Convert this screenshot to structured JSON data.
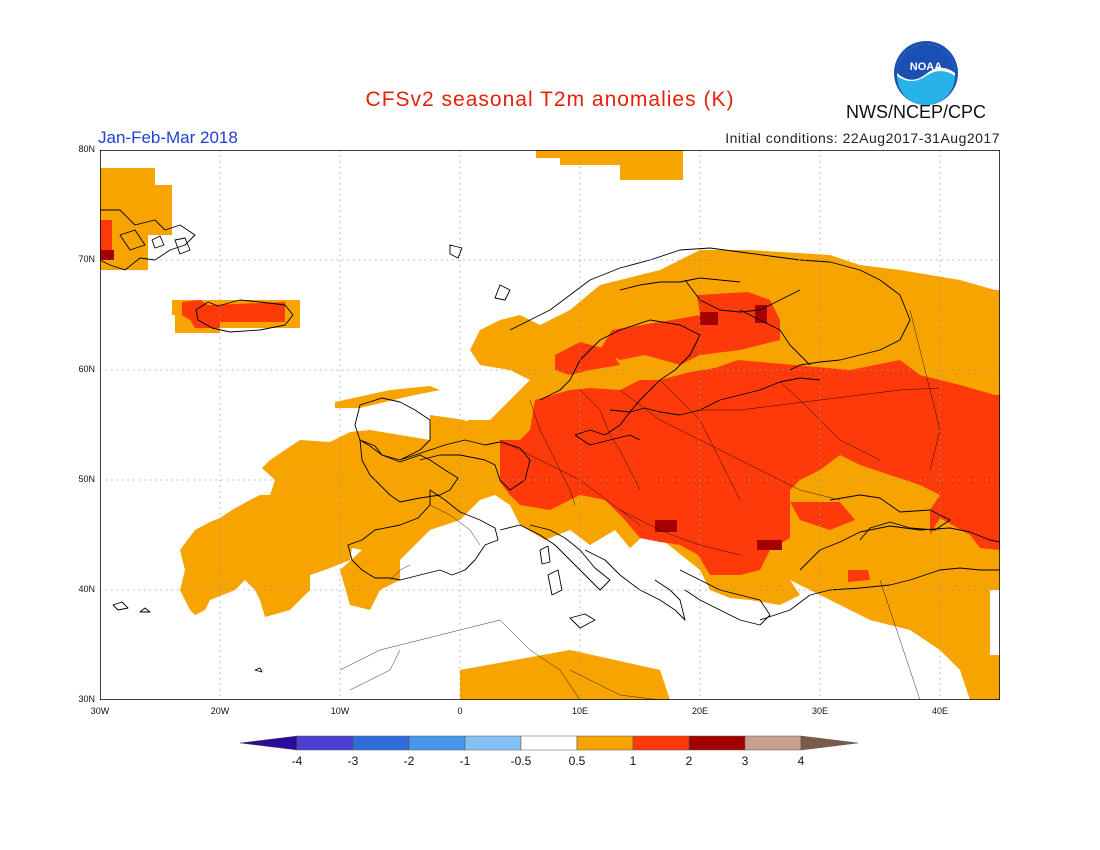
{
  "title": "CFSv2 seasonal T2m anomalies (K)",
  "agency": "NWS/NCEP/CPC",
  "logo_text": "NOAA",
  "period": "Jan-Feb-Mar 2018",
  "initial_conditions": "Initial conditions: 22Aug2017-31Aug2017",
  "lat_labels": [
    "80N",
    "70N",
    "60N",
    "50N",
    "40N",
    "30N"
  ],
  "lon_labels": [
    "30W",
    "20W",
    "10W",
    "0",
    "10E",
    "20E",
    "30E",
    "40E"
  ],
  "legend": {
    "labels": [
      "-4",
      "-3",
      "-2",
      "-1",
      "-0.5",
      "0.5",
      "1",
      "2",
      "3",
      "4"
    ],
    "colors": [
      "#2a0b9a",
      "#4b3fd0",
      "#2f6ddc",
      "#4a97ea",
      "#84c2f6",
      "#ffffff",
      "#f7a400",
      "#ff3a0a",
      "#a40000",
      "#c7a08e",
      "#7a5a48"
    ]
  },
  "colors": {
    "orange": "#f7a400",
    "red_orange": "#ff3a0a",
    "dark_red": "#a40000",
    "coast": "#000000",
    "title": "#e8200a",
    "period": "#1f3fd6"
  }
}
